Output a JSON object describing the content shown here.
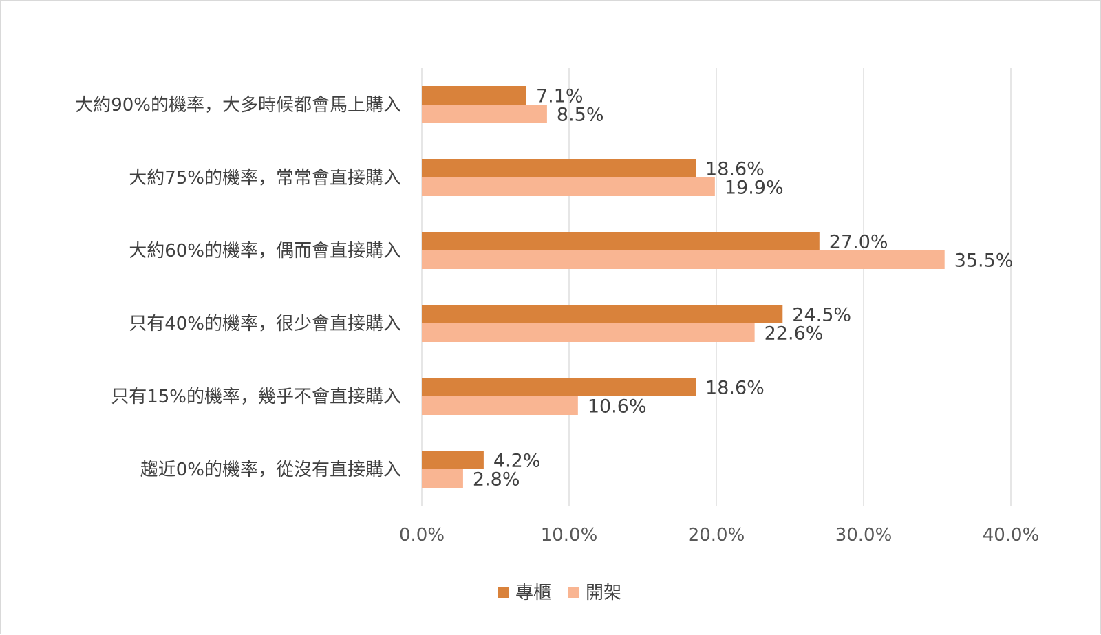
{
  "chart_data": {
    "type": "bar",
    "orientation": "horizontal",
    "categories": [
      "大約90%的機率，大多時候都會馬上購入",
      "大約75%的機率，常常會直接購入",
      "大約60%的機率，偶而會直接購入",
      "只有40%的機率，很少會直接購入",
      "只有15%的機率，幾乎不會直接購入",
      "趨近0%的機率，從沒有直接購入"
    ],
    "series": [
      {
        "name": "專櫃",
        "color": "#d9823b",
        "values": [
          7.1,
          18.6,
          27.0,
          24.5,
          18.6,
          4.2
        ],
        "labels": [
          "7.1%",
          "18.6%",
          "27.0%",
          "24.5%",
          "18.6%",
          "4.2%"
        ]
      },
      {
        "name": "開架",
        "color": "#f9b592",
        "values": [
          8.5,
          19.9,
          35.5,
          22.6,
          10.6,
          2.8
        ],
        "labels": [
          "8.5%",
          "19.9%",
          "35.5%",
          "22.6%",
          "10.6%",
          "2.8%"
        ]
      }
    ],
    "xlim": [
      0,
      40
    ],
    "xticks": [
      "0.0%",
      "10.0%",
      "20.0%",
      "30.0%",
      "40.0%"
    ],
    "grid": "vertical",
    "legend_position": "bottom"
  }
}
